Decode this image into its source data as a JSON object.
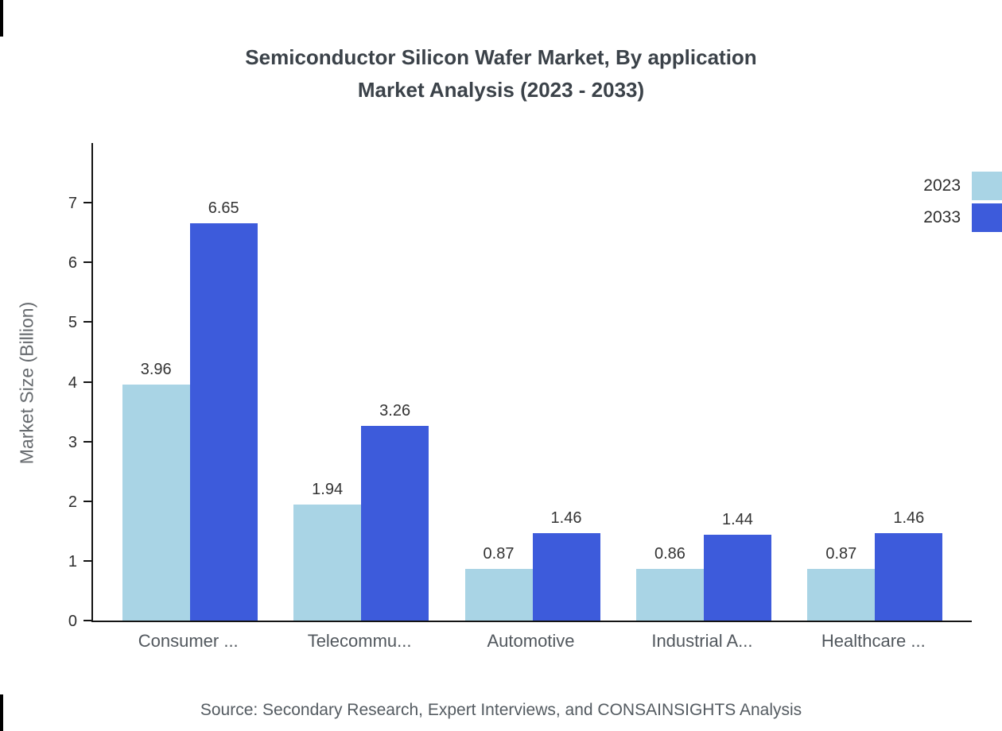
{
  "chart": {
    "title_line1": "Semiconductor Silicon Wafer Market, By application",
    "title_line2": "Market Analysis (2023 - 2033)",
    "ylabel": "Market Size (Billion)",
    "source": "Source: Secondary Research, Expert Interviews, and CONSAINSIGHTS Analysis"
  },
  "chart_data": {
    "type": "bar",
    "title": "Semiconductor Silicon Wafer Market, By application Market Analysis (2023 - 2033)",
    "categories": [
      "Consumer ...",
      "Telecommu...",
      "Automotive",
      "Industrial A...",
      "Healthcare ..."
    ],
    "series": [
      {
        "name": "2023",
        "color": "#a9d4e5",
        "values": [
          3.96,
          1.94,
          0.87,
          0.86,
          0.87
        ]
      },
      {
        "name": "2033",
        "color": "#3d5bdb",
        "values": [
          6.65,
          3.26,
          1.46,
          1.44,
          1.46
        ]
      }
    ],
    "xlabel": "",
    "ylabel": "Market Size (Billion)",
    "ylim": [
      0,
      8
    ],
    "yticks": [
      0,
      1,
      2,
      3,
      4,
      5,
      6,
      7
    ],
    "grid": false,
    "legend_position": "top-right",
    "value_labels": true
  }
}
